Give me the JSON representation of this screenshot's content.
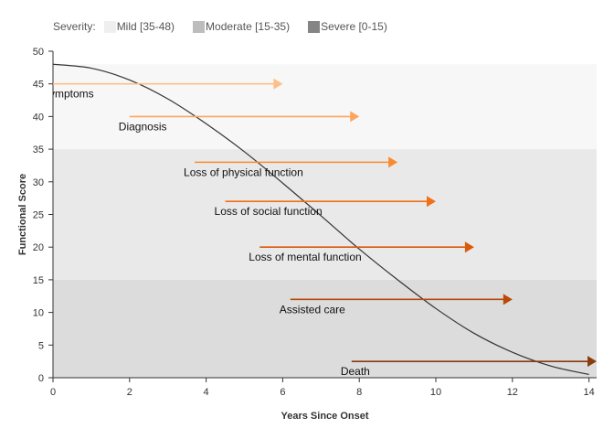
{
  "legend": {
    "title": "Severity:",
    "items": [
      {
        "label": "Mild [35-48)",
        "color": "#efefef"
      },
      {
        "label": "Moderate [15-35)",
        "color": "#bdbdbd"
      },
      {
        "label": "Severe [0-15)",
        "color": "#858585"
      }
    ]
  },
  "chart_data": {
    "type": "line",
    "xlabel": "Years Since Onset",
    "ylabel": "Functional Score",
    "xlim": [
      0,
      14.2
    ],
    "ylim": [
      0,
      50
    ],
    "xticks": [
      0,
      2,
      4,
      6,
      8,
      10,
      12,
      14
    ],
    "yticks": [
      0,
      5,
      10,
      15,
      20,
      25,
      30,
      35,
      40,
      45,
      50
    ],
    "grid": false,
    "severity_bands": [
      {
        "label": "Severe [0-15)",
        "y0": 0,
        "y1": 15,
        "color": "#dcdcdc"
      },
      {
        "label": "Moderate [15-35)",
        "y0": 15,
        "y1": 35,
        "color": "#e9e9e9"
      },
      {
        "label": "Mild [35-48)",
        "y0": 35,
        "y1": 48,
        "color": "#f7f7f7"
      }
    ],
    "curve": {
      "x": [
        0,
        1,
        2,
        3,
        4,
        5,
        6,
        7,
        8,
        9,
        10,
        11,
        12,
        13,
        14
      ],
      "y": [
        48,
        47.4,
        45.6,
        42.7,
        38.9,
        34.6,
        29.8,
        24.8,
        19.7,
        15.0,
        10.6,
        6.8,
        3.9,
        1.8,
        0.5
      ],
      "color": "#333333"
    },
    "events": [
      {
        "label": "Symptoms",
        "x_start": 0,
        "x_end": 6,
        "y": 45,
        "color": "#fdbf8a"
      },
      {
        "label": "Diagnosis",
        "x_start": 2,
        "x_end": 8,
        "y": 40,
        "color": "#fca660"
      },
      {
        "label": "Loss of physical function",
        "x_start": 3.7,
        "x_end": 9,
        "y": 33,
        "color": "#f98a31"
      },
      {
        "label": "Loss of social function",
        "x_start": 4.5,
        "x_end": 10,
        "y": 27,
        "color": "#f07018"
      },
      {
        "label": "Loss of mental function",
        "x_start": 5.4,
        "x_end": 11,
        "y": 20,
        "color": "#db590a"
      },
      {
        "label": "Assisted care",
        "x_start": 6.2,
        "x_end": 12,
        "y": 12,
        "color": "#ba4806"
      },
      {
        "label": "Death",
        "x_start": 7.8,
        "x_end": 14.2,
        "y": 2.5,
        "color": "#8a3d0e"
      }
    ]
  }
}
